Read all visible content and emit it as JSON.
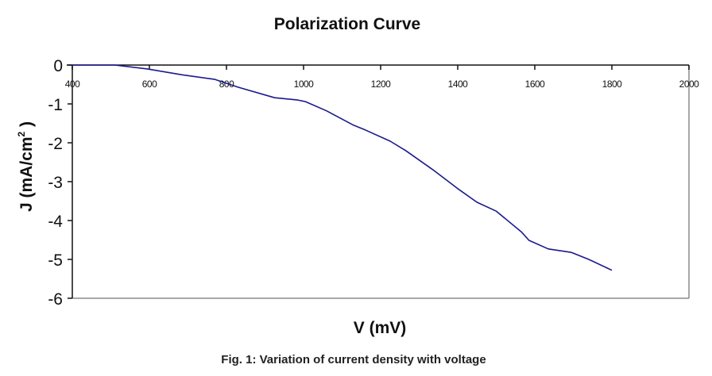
{
  "chart_data": {
    "type": "line",
    "title": "Polarization Curve",
    "xlabel": "V (mV)",
    "ylabel": "J (mA/cm",
    "ylabel_superscript": "2",
    "ylabel_suffix": " )",
    "caption": "Fig. 1: Variation of current density with voltage",
    "xlim": [
      400,
      2000
    ],
    "ylim": [
      -6,
      0
    ],
    "x_ticks": [
      400,
      600,
      800,
      1000,
      1200,
      1400,
      1600,
      1800,
      2000
    ],
    "x_tick_labels": [
      "400",
      "600",
      "800",
      "1000",
      "1200",
      "1400",
      "1600",
      "1800",
      "2000"
    ],
    "y_ticks": [
      0,
      -1,
      -2,
      -3,
      -4,
      -5,
      -6
    ],
    "y_tick_labels": [
      "0",
      "-1",
      "-2",
      "-3",
      "-4",
      "-5",
      "-6"
    ],
    "x_axis_position": "top (at y=0)",
    "grid": false,
    "legend": "none",
    "series": [
      {
        "name": "J",
        "color": "#1a1a8c",
        "x": [
          400,
          510,
          595,
          685,
          770,
          830,
          925,
          985,
          1005,
          1060,
          1130,
          1160,
          1225,
          1265,
          1335,
          1400,
          1450,
          1500,
          1565,
          1585,
          1635,
          1695,
          1740,
          1800
        ],
        "y": [
          0,
          0,
          -0.1,
          -0.25,
          -0.37,
          -0.57,
          -0.84,
          -0.9,
          -0.94,
          -1.18,
          -1.55,
          -1.67,
          -1.96,
          -2.2,
          -2.69,
          -3.18,
          -3.53,
          -3.76,
          -4.29,
          -4.51,
          -4.73,
          -4.82,
          -5.0,
          -5.28
        ]
      }
    ]
  }
}
